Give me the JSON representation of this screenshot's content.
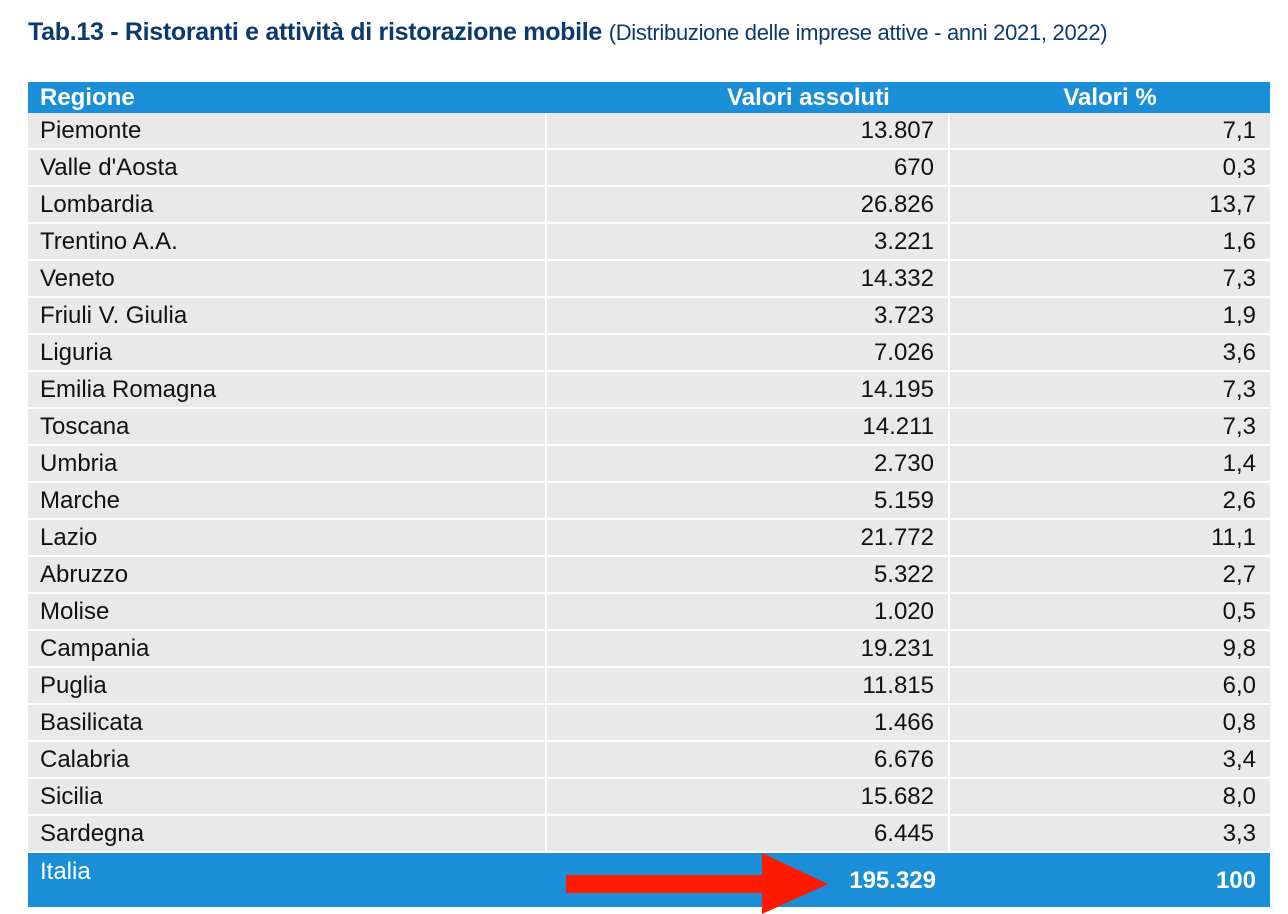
{
  "title": {
    "main": "Tab.13 - Ristoranti e attività di ristorazione mobile",
    "sub": "(Distribuzione delle imprese attive - anni 2021, 2022)"
  },
  "table": {
    "headers": [
      "Regione",
      "Valori assoluti",
      "Valori %"
    ],
    "rows": [
      {
        "regione": "Piemonte",
        "assoluti": "13.807",
        "percent": "7,1"
      },
      {
        "regione": "Valle d'Aosta",
        "assoluti": "670",
        "percent": "0,3"
      },
      {
        "regione": "Lombardia",
        "assoluti": "26.826",
        "percent": "13,7"
      },
      {
        "regione": "Trentino A.A.",
        "assoluti": "3.221",
        "percent": "1,6"
      },
      {
        "regione": "Veneto",
        "assoluti": "14.332",
        "percent": "7,3"
      },
      {
        "regione": "Friuli V. Giulia",
        "assoluti": "3.723",
        "percent": "1,9"
      },
      {
        "regione": "Liguria",
        "assoluti": "7.026",
        "percent": "3,6"
      },
      {
        "regione": "Emilia Romagna",
        "assoluti": "14.195",
        "percent": "7,3"
      },
      {
        "regione": "Toscana",
        "assoluti": "14.211",
        "percent": "7,3"
      },
      {
        "regione": "Umbria",
        "assoluti": "2.730",
        "percent": "1,4"
      },
      {
        "regione": "Marche",
        "assoluti": "5.159",
        "percent": "2,6"
      },
      {
        "regione": "Lazio",
        "assoluti": "21.772",
        "percent": "11,1"
      },
      {
        "regione": "Abruzzo",
        "assoluti": "5.322",
        "percent": "2,7"
      },
      {
        "regione": "Molise",
        "assoluti": "1.020",
        "percent": "0,5"
      },
      {
        "regione": "Campania",
        "assoluti": "19.231",
        "percent": "9,8"
      },
      {
        "regione": "Puglia",
        "assoluti": "11.815",
        "percent": "6,0"
      },
      {
        "regione": "Basilicata",
        "assoluti": "1.466",
        "percent": "0,8"
      },
      {
        "regione": "Calabria",
        "assoluti": "6.676",
        "percent": "3,4"
      },
      {
        "regione": "Sicilia",
        "assoluti": "15.682",
        "percent": "8,0"
      },
      {
        "regione": "Sardegna",
        "assoluti": "6.445",
        "percent": "3,3"
      }
    ],
    "total": {
      "regione": "Italia",
      "assoluti": "195.329",
      "percent": "100"
    }
  },
  "annotation": {
    "icon": "red-arrow-icon",
    "color": "#ff1a00"
  },
  "colors": {
    "header_bg": "#1a8ed6",
    "row_bg": "#e9e9e9",
    "title": "#0b3a6e"
  }
}
